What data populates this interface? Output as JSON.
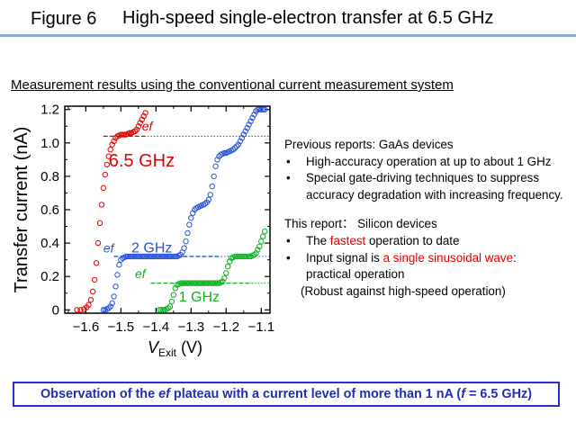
{
  "header": {
    "figure_label": "Figure 6",
    "title": "High-speed single-electron transfer at 6.5 GHz"
  },
  "subtitle": "Measurement results using the conventional current measurement system",
  "chart_data": {
    "type": "scatter",
    "xlabel": "V",
    "xlabel_sub": "Exit",
    "xlabel_unit": " (V)",
    "ylabel": "Transfer current (nA)",
    "xlim": [
      -1.66,
      -1.075
    ],
    "ylim": [
      -0.02,
      1.22
    ],
    "x_ticks": [
      -1.6,
      -1.5,
      -1.4,
      -1.3,
      -1.2,
      -1.1
    ],
    "x_tick_labels": [
      "−1.6",
      "−1.5",
      "−1.4",
      "−1.3",
      "−1.2",
      "−1.1"
    ],
    "y_ticks": [
      0,
      0.2,
      0.4,
      0.6,
      0.8,
      1.0,
      1.2
    ],
    "y_tick_labels": [
      "0",
      "0.2",
      "0.4",
      "0.6",
      "0.8",
      "1.0",
      "1.2"
    ],
    "grid": false,
    "series": [
      {
        "name": "6.5 GHz",
        "color": "#e00000",
        "ef_level": 1.04,
        "ef_range": [
          -1.55,
          -1.425
        ],
        "x": [
          -1.625,
          -1.615,
          -1.605,
          -1.598,
          -1.592,
          -1.586,
          -1.58,
          -1.575,
          -1.57,
          -1.565,
          -1.56,
          -1.555,
          -1.55,
          -1.545,
          -1.54,
          -1.535,
          -1.53,
          -1.525,
          -1.52,
          -1.515,
          -1.51,
          -1.505,
          -1.5,
          -1.495,
          -1.49,
          -1.485,
          -1.48,
          -1.475,
          -1.47,
          -1.465,
          -1.46,
          -1.455,
          -1.45,
          -1.445,
          -1.44,
          -1.435,
          -1.43
        ],
        "y": [
          0.0,
          0.0,
          0.005,
          0.015,
          0.03,
          0.06,
          0.11,
          0.18,
          0.28,
          0.4,
          0.52,
          0.63,
          0.73,
          0.81,
          0.87,
          0.92,
          0.96,
          0.99,
          1.01,
          1.03,
          1.04,
          1.045,
          1.05,
          1.05,
          1.05,
          1.05,
          1.055,
          1.06,
          1.06,
          1.065,
          1.07,
          1.08,
          1.1,
          1.12,
          1.14,
          1.16,
          1.18
        ]
      },
      {
        "name": "2 GHz",
        "color": "#2a52d8",
        "ef_level": 0.32,
        "ef_range": [
          -1.52,
          -1.22
        ],
        "x": [
          -1.55,
          -1.545,
          -1.54,
          -1.535,
          -1.53,
          -1.525,
          -1.52,
          -1.515,
          -1.51,
          -1.505,
          -1.5,
          -1.495,
          -1.49,
          -1.485,
          -1.48,
          -1.475,
          -1.47,
          -1.465,
          -1.46,
          -1.455,
          -1.45,
          -1.445,
          -1.44,
          -1.435,
          -1.43,
          -1.425,
          -1.42,
          -1.415,
          -1.41,
          -1.405,
          -1.4,
          -1.395,
          -1.39,
          -1.385,
          -1.38,
          -1.375,
          -1.37,
          -1.365,
          -1.36,
          -1.355,
          -1.35,
          -1.345,
          -1.34,
          -1.335,
          -1.33,
          -1.325,
          -1.32,
          -1.315,
          -1.31,
          -1.305,
          -1.3,
          -1.295,
          -1.29,
          -1.285,
          -1.28,
          -1.275,
          -1.27,
          -1.265,
          -1.26,
          -1.255,
          -1.25,
          -1.245,
          -1.24,
          -1.235,
          -1.23,
          -1.225,
          -1.22,
          -1.215,
          -1.21,
          -1.205,
          -1.2,
          -1.195,
          -1.19,
          -1.185,
          -1.18,
          -1.175,
          -1.17,
          -1.165,
          -1.16,
          -1.155,
          -1.15,
          -1.145,
          -1.14,
          -1.135,
          -1.13,
          -1.125,
          -1.12,
          -1.115,
          -1.11,
          -1.105,
          -1.1,
          -1.095,
          -1.09
        ],
        "y": [
          0.0,
          0.0,
          0.005,
          0.01,
          0.02,
          0.04,
          0.08,
          0.14,
          0.21,
          0.27,
          0.3,
          0.31,
          0.315,
          0.32,
          0.32,
          0.32,
          0.32,
          0.32,
          0.32,
          0.32,
          0.32,
          0.32,
          0.32,
          0.32,
          0.32,
          0.32,
          0.32,
          0.32,
          0.32,
          0.32,
          0.32,
          0.32,
          0.32,
          0.32,
          0.32,
          0.32,
          0.32,
          0.32,
          0.32,
          0.32,
          0.32,
          0.32,
          0.32,
          0.325,
          0.33,
          0.345,
          0.37,
          0.41,
          0.46,
          0.51,
          0.55,
          0.58,
          0.6,
          0.61,
          0.615,
          0.62,
          0.625,
          0.63,
          0.635,
          0.645,
          0.66,
          0.69,
          0.74,
          0.8,
          0.86,
          0.9,
          0.92,
          0.93,
          0.935,
          0.94,
          0.94,
          0.945,
          0.95,
          0.955,
          0.96,
          0.97,
          0.98,
          0.99,
          1.01,
          1.03,
          1.05,
          1.07,
          1.09,
          1.11,
          1.13,
          1.15,
          1.17,
          1.19,
          1.2,
          1.2,
          1.2,
          1.2,
          1.2
        ]
      },
      {
        "name": "1 GHz",
        "color": "#10b020",
        "ef_level": 0.16,
        "ef_range": [
          -1.415,
          -1.125
        ],
        "x": [
          -1.39,
          -1.385,
          -1.38,
          -1.375,
          -1.37,
          -1.365,
          -1.36,
          -1.355,
          -1.35,
          -1.345,
          -1.34,
          -1.335,
          -1.33,
          -1.325,
          -1.32,
          -1.315,
          -1.31,
          -1.305,
          -1.3,
          -1.295,
          -1.29,
          -1.285,
          -1.28,
          -1.275,
          -1.27,
          -1.265,
          -1.26,
          -1.255,
          -1.25,
          -1.245,
          -1.24,
          -1.235,
          -1.23,
          -1.225,
          -1.22,
          -1.215,
          -1.21,
          -1.205,
          -1.2,
          -1.195,
          -1.19,
          -1.185,
          -1.18,
          -1.175,
          -1.17,
          -1.165,
          -1.16,
          -1.155,
          -1.15,
          -1.145,
          -1.14,
          -1.135,
          -1.13,
          -1.125,
          -1.12,
          -1.115,
          -1.11,
          -1.105,
          -1.1,
          -1.095,
          -1.09
        ],
        "y": [
          0.0,
          0.0,
          0.0,
          0.0,
          0.005,
          0.01,
          0.02,
          0.05,
          0.09,
          0.13,
          0.15,
          0.155,
          0.16,
          0.16,
          0.16,
          0.16,
          0.16,
          0.16,
          0.16,
          0.16,
          0.16,
          0.16,
          0.16,
          0.16,
          0.16,
          0.16,
          0.16,
          0.16,
          0.16,
          0.16,
          0.16,
          0.16,
          0.16,
          0.16,
          0.16,
          0.165,
          0.17,
          0.19,
          0.22,
          0.26,
          0.29,
          0.31,
          0.315,
          0.32,
          0.32,
          0.32,
          0.32,
          0.32,
          0.32,
          0.32,
          0.32,
          0.32,
          0.32,
          0.325,
          0.33,
          0.34,
          0.36,
          0.38,
          0.41,
          0.44,
          0.47
        ]
      }
    ],
    "annotations": {
      "red_label": "6.5 GHz",
      "blue_label": "2 GHz",
      "green_label": "1 GHz",
      "ef_label": "ef"
    }
  },
  "notes": {
    "prev_head": "Previous reports: GaAs devices",
    "prev_b1": "High-accuracy operation at up to about 1 GHz",
    "prev_b2": "Special gate-driving techniques to suppress accuracy degradation with increasing frequency.",
    "this_head": "This report： Silicon devices",
    "this_b1_pre": "The ",
    "this_b1_red": "fastest",
    "this_b1_post": " operation to date",
    "this_b2_pre": "Input signal is ",
    "this_b2_red": "a single sinusoidal wave",
    "this_b2_post": ":",
    "this_b2_line2": "practical  operation",
    "this_b2_line3": "(Robust against high-speed operation)"
  },
  "conclusion": {
    "part1": "Observation of the ",
    "part2": "ef",
    "part3": " plateau with a current level of more than 1 nA (",
    "part4": "f",
    "part5": " = 6.5 GHz)"
  }
}
